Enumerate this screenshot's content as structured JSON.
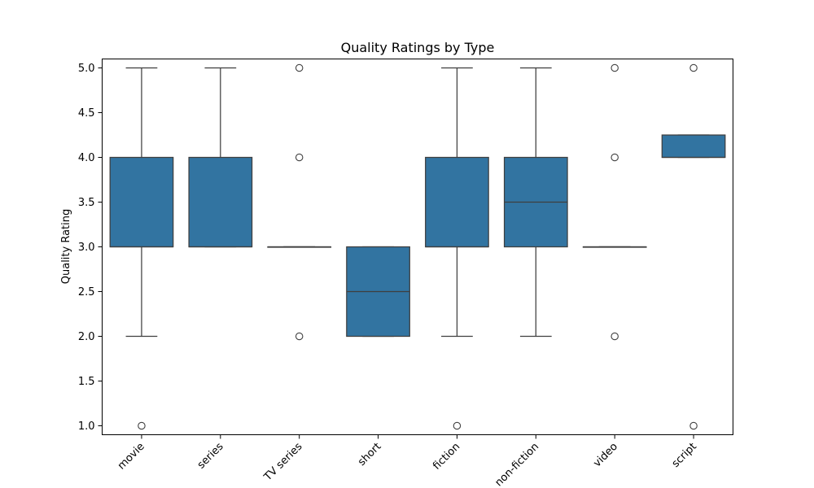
{
  "chart_data": {
    "type": "box",
    "title": "Quality Ratings by Type",
    "xlabel": "",
    "ylabel": "Quality Rating",
    "ylim": [
      0.9,
      5.1
    ],
    "yticks": [
      "1.0",
      "1.5",
      "2.0",
      "2.5",
      "3.0",
      "3.5",
      "4.0",
      "4.5",
      "5.0"
    ],
    "categories": [
      "movie",
      "series",
      "TV series",
      "short",
      "fiction",
      "non-fiction",
      "video",
      "script"
    ],
    "grid": false,
    "box_color": "#3274a1",
    "line_color": "#3f3f3f",
    "boxes": [
      {
        "q1": 3.0,
        "median": 3.0,
        "q3": 4.0,
        "whisker_low": 2.0,
        "whisker_high": 5.0,
        "outliers": [
          1.0
        ]
      },
      {
        "q1": 3.0,
        "median": 3.0,
        "q3": 4.0,
        "whisker_low": 3.0,
        "whisker_high": 5.0,
        "outliers": []
      },
      {
        "q1": 3.0,
        "median": 3.0,
        "q3": 3.0,
        "whisker_low": 3.0,
        "whisker_high": 3.0,
        "outliers": [
          2.0,
          4.0,
          5.0
        ]
      },
      {
        "q1": 2.0,
        "median": 2.5,
        "q3": 3.0,
        "whisker_low": 2.0,
        "whisker_high": 3.0,
        "outliers": []
      },
      {
        "q1": 3.0,
        "median": 3.0,
        "q3": 4.0,
        "whisker_low": 2.0,
        "whisker_high": 5.0,
        "outliers": [
          1.0
        ]
      },
      {
        "q1": 3.0,
        "median": 3.5,
        "q3": 4.0,
        "whisker_low": 2.0,
        "whisker_high": 5.0,
        "outliers": []
      },
      {
        "q1": 3.0,
        "median": 3.0,
        "q3": 3.0,
        "whisker_low": 3.0,
        "whisker_high": 3.0,
        "outliers": [
          2.0,
          4.0,
          5.0
        ]
      },
      {
        "q1": 4.0,
        "median": 4.0,
        "q3": 4.25,
        "whisker_low": 4.0,
        "whisker_high": 4.25,
        "outliers": [
          1.0,
          5.0
        ]
      }
    ]
  }
}
